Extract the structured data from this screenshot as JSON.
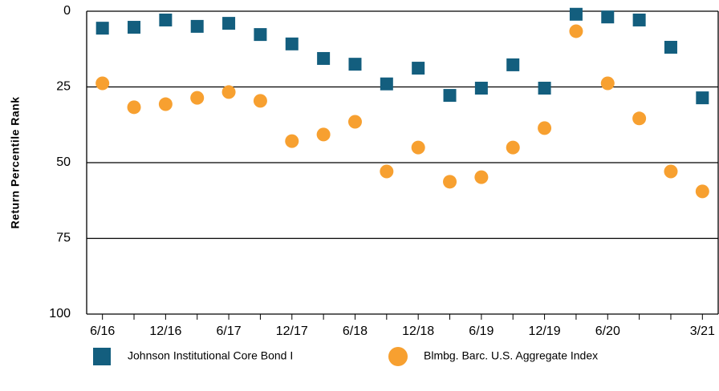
{
  "chart_data": {
    "type": "scatter",
    "y_label": "Return Percentile Rank",
    "categories": [
      "6/16",
      null,
      "12/16",
      null,
      "6/17",
      null,
      "12/17",
      null,
      "6/18",
      null,
      "12/18",
      null,
      "6/19",
      null,
      "12/19",
      null,
      "6/20",
      null,
      null,
      "3/21"
    ],
    "series": [
      {
        "name": "Johnson Institutional Core Bond I",
        "color": "#135e7e",
        "marker": "square",
        "values": [
          5.6,
          5.3,
          2.9,
          5,
          4,
          7.7,
          10.8,
          15.6,
          17.5,
          24,
          18.8,
          27.8,
          25.4,
          17.7,
          25.4,
          1,
          1.9,
          2.9,
          11.9,
          28.6
        ]
      },
      {
        "name": "Blmbg. Barc. U.S. Aggregate Index",
        "color": "#f7a030",
        "marker": "circle",
        "values": [
          23.8,
          31.7,
          30.7,
          28.6,
          26.7,
          29.6,
          42.9,
          40.7,
          36.5,
          52.9,
          45,
          56.3,
          54.8,
          45,
          38.6,
          6.6,
          23.8,
          35.4,
          52.9,
          59.5
        ]
      }
    ],
    "ylim": [
      0,
      100
    ],
    "yticks": [
      0,
      25,
      50,
      75,
      100
    ],
    "y_inverted": true,
    "grid": true,
    "legend": "bottom"
  }
}
